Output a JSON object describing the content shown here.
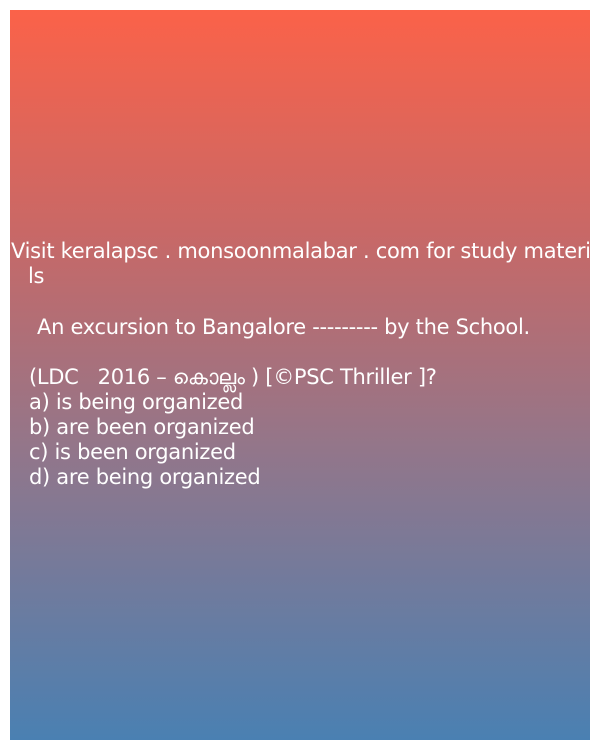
{
  "promo": {
    "line1": "Visit keralapsc . monsoonmalabar . com for study materia",
    "line2": "ls"
  },
  "question": {
    "text": "An excursion to Bangalore --------- by the School.",
    "source": "(LDC   2016 – കൊല്ലം ) [©PSC Thriller ]?"
  },
  "options": [
    {
      "letter": "a)",
      "text": "a) is being organized"
    },
    {
      "letter": "b)",
      "text": "b) are been organized"
    },
    {
      "letter": "c)",
      "text": "c) is been organized"
    },
    {
      "letter": "d)",
      "text": "d) are being organized"
    }
  ],
  "colors": {
    "gradient_top": "#fb6249",
    "gradient_bottom": "#4a80b2",
    "text": "#ffffff"
  }
}
